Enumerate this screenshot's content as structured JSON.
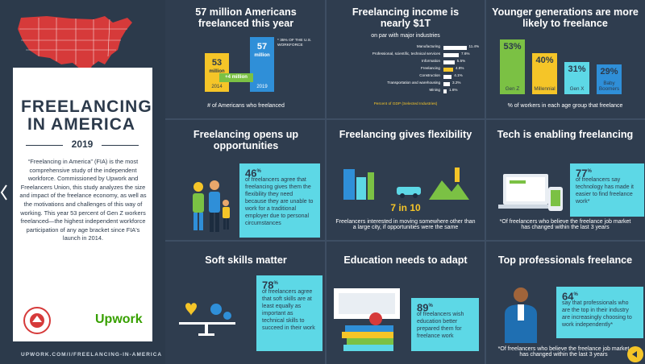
{
  "sidebar": {
    "title_line1": "FREELANCING",
    "title_line2": "IN AMERICA",
    "year": "2019",
    "description": "“Freelancing in America” (FIA) is the most comprehensive study of the independent workforce. Commissioned by Upwork and Freelancers Union, this study analyzes the size and impact of the freelance economy, as well as the motivations and challenges of this way of working. This year 53 percent of Gen Z workers freelanced—the highest independent workforce participation of any age bracket since FIA's launch in 2014.",
    "logo_fu_text": "FREELANCERS UNION",
    "logo_upwork": "Upwork",
    "footer_url": "UPWORK.COM/I/FREELANCING-IN-AMERICA"
  },
  "panels": {
    "p1": {
      "title": "57 million Americans freelanced this year",
      "bar1_value": "53",
      "bar1_unit": "million",
      "bar1_year": "2014",
      "bar2_value": "57",
      "bar2_unit": "million",
      "bar2_year": "2019",
      "growth": "+4 million",
      "note": "* 35% OF THE U.S. WORKFORCE",
      "caption": "# of Americans who freelanced",
      "colors": {
        "bar1": "#f5c528",
        "bar2": "#2f8fd8",
        "growth": "#7bc144"
      }
    },
    "p2": {
      "title_line1": "Freelancing income is",
      "title_line2": "nearly $1T",
      "subtitle": "on par with major industries",
      "footnote": "Percent of GDP (Selected Industries)",
      "industries": [
        {
          "label": "Manufacturing",
          "value": 11.4,
          "text": "11.4%",
          "highlight": false
        },
        {
          "label": "Professional, scientific, technical services",
          "value": 7.6,
          "text": "7.6%",
          "highlight": false
        },
        {
          "label": "Information",
          "value": 5.5,
          "text": "5.5%",
          "highlight": false
        },
        {
          "label": "Freelancing",
          "value": 4.8,
          "text": "4.8%",
          "highlight": true
        },
        {
          "label": "Construction",
          "value": 4.1,
          "text": "4.1%",
          "highlight": false
        },
        {
          "label": "Transportation and warehousing",
          "value": 3.2,
          "text": "3.2%",
          "highlight": false
        },
        {
          "label": "Mining",
          "value": 1.6,
          "text": "1.6%",
          "highlight": false
        }
      ]
    },
    "p3": {
      "title": "Younger generations are more likely to freelance",
      "caption": "% of workers in each age group that freelance",
      "generations": [
        {
          "name": "Gen Z",
          "pct": "53",
          "value": 53,
          "color": "#7bc144"
        },
        {
          "name": "Millennial",
          "pct": "40",
          "value": 40,
          "color": "#f5c528"
        },
        {
          "name": "Gen X",
          "pct": "31",
          "value": 31,
          "color": "#5dd8e6"
        },
        {
          "name": "Baby Boomers",
          "pct": "29",
          "value": 29,
          "color": "#2f8fd8"
        }
      ]
    },
    "p4": {
      "title": "Freelancing opens up opportunities",
      "pct": "46",
      "text": "of freelancers agree that freelancing gives them the flexibility they need because they are unable to work for a traditional employer due to personal circumstances"
    },
    "p5": {
      "title": "Freelancing gives flexibility",
      "ratio": "7 in 10",
      "caption": "Freelancers interested in moving somewhere other than a large city, if opportunities were the same"
    },
    "p6": {
      "title": "Tech is enabling freelancing",
      "pct": "77",
      "text": "of freelancers say technology has made it easier to find freelance work*",
      "caption": "*Of freelancers who believe the freelance job market has changed within the last 3 years"
    },
    "p7": {
      "title": "Soft skills matter",
      "pct": "78",
      "text": "of freelancers agree that soft skills are at least equally as important as technical skills to succeed in their work"
    },
    "p8": {
      "title": "Education needs to adapt",
      "pct": "89",
      "text": "of freelancers wish education better prepared them for freelance work"
    },
    "p9": {
      "title": "Top professionals freelance",
      "pct": "64",
      "text": "say that professionals who are the top in their industry are increasingly choosing to work independently*",
      "caption": "*Of freelancers who believe the freelance job market has changed within the last 3 years"
    }
  },
  "pct_symbol": "%"
}
